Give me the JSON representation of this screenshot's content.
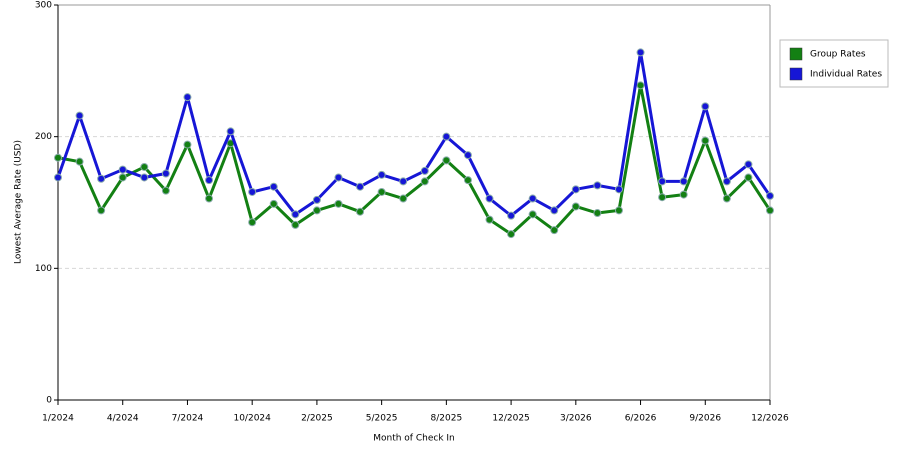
{
  "chart_data": {
    "type": "line",
    "x_label": "Month of Check In",
    "y_label": "Lowest Average Rate (USD)",
    "categories": [
      "1/2024",
      null,
      null,
      "4/2024",
      null,
      null,
      "7/2024",
      null,
      null,
      "10/2024",
      null,
      null,
      "2/2025",
      null,
      null,
      "5/2025",
      null,
      null,
      "8/2025",
      null,
      null,
      "12/2025",
      null,
      null,
      "3/2026",
      null,
      null,
      "6/2026",
      null,
      null,
      "9/2026",
      null,
      null,
      "12/2026"
    ],
    "series": [
      {
        "name": "Group Rates",
        "color": "#138013",
        "values": [
          184,
          181,
          144,
          169,
          177,
          159,
          194,
          153,
          195,
          135,
          149,
          133,
          144,
          149,
          143,
          158,
          153,
          166,
          182,
          167,
          137,
          126,
          141,
          129,
          147,
          142,
          144,
          239,
          154,
          156,
          197,
          153,
          169,
          144
        ]
      },
      {
        "name": "Individual Rates",
        "color": "#1616d6",
        "values": [
          169,
          216,
          168,
          175,
          169,
          172,
          230,
          167,
          204,
          158,
          162,
          141,
          152,
          169,
          162,
          171,
          166,
          174,
          200,
          186,
          153,
          140,
          153,
          144,
          160,
          163,
          160,
          264,
          166,
          166,
          223,
          166,
          179,
          155
        ]
      }
    ],
    "ylim": [
      0,
      300
    ],
    "yticks": [
      0,
      100,
      200,
      300
    ],
    "grid": true,
    "legend": "right"
  }
}
